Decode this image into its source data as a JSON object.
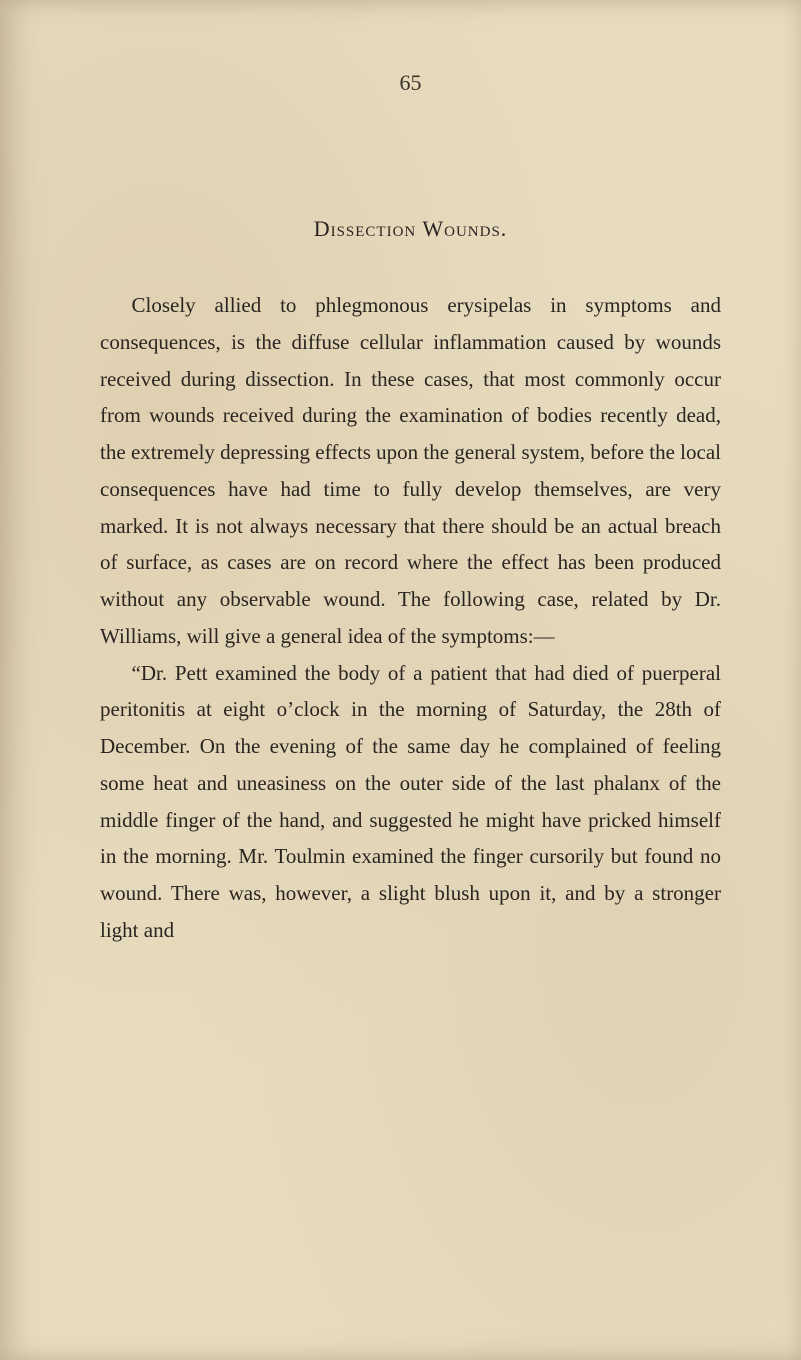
{
  "page": {
    "number": "65",
    "heading": "Dissection Wounds.",
    "paragraphs": [
      "Closely allied to phlegmonous erysipelas in symp­toms and consequences, is the diffuse cellular inflam­mation caused by wounds received during dissection. In these cases, that most commonly occur from wounds received during the examination of bodies recently dead, the extremely depressing effects upon the general system, before the local consequences have had time to fully develop themselves, are very marked. It is not always necessary that there should be an actual breach of surface, as cases are on record where the effect has been produced with­out any observable wound. The following case, related by Dr. Williams, will give a general idea of the symptoms:—",
      "“Dr. Pett examined the body of a patient that had died of puerperal peritonitis at eight o’clock in the morning of Saturday, the 28th of December. On the evening of the same day he complained of feeling some heat and uneasiness on the outer side of the last phalanx of the middle finger of the hand, and suggested he might have pricked himself in the morning. Mr. Toulmin examined the finger cursorily but found no wound. There was, however, a slight blush upon it, and by a stronger light and"
    ]
  },
  "colors": {
    "background": "#e8dcc0",
    "text": "#2a2520",
    "shadow": "rgba(120, 100, 70, 0.25)"
  },
  "typography": {
    "body_fontsize": 21,
    "heading_fontsize": 22,
    "pagenum_fontsize": 22,
    "line_height": 1.75,
    "font_family": "Georgia, serif"
  }
}
